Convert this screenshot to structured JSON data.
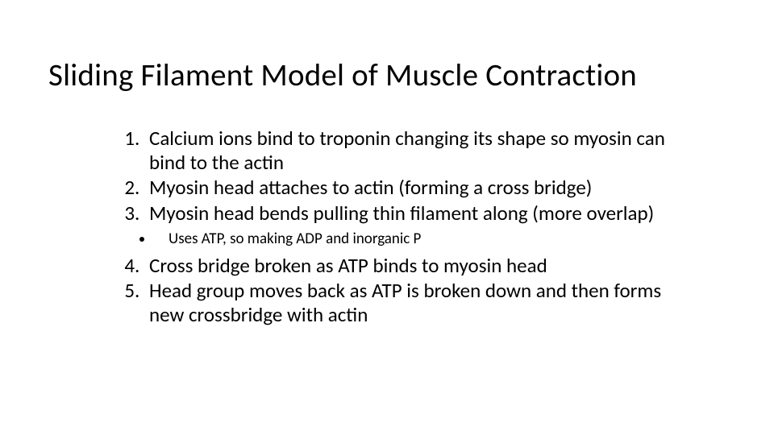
{
  "slide": {
    "background_color": "#ffffff",
    "text_color": "#000000",
    "title": "Sliding Filament Model of Muscle Contraction",
    "title_fontsize": 39,
    "body_fontsize": 25,
    "sub_fontsize": 19,
    "items": [
      {
        "n": 1,
        "text": "Calcium ions bind to troponin changing its shape so myosin can bind to the actin"
      },
      {
        "n": 2,
        "text": "Myosin head attaches to actin (forming a cross bridge)"
      },
      {
        "n": 3,
        "text": "Myosin head bends pulling thin filament along (more overlap)"
      }
    ],
    "sub_items": [
      {
        "text": "Uses ATP, so making ADP and inorganic P"
      }
    ],
    "items_after": [
      {
        "n": 4,
        "text": "Cross bridge broken as ATP binds to myosin head"
      },
      {
        "n": 5,
        "text": "Head group moves back as ATP is broken down and then forms new crossbridge with actin"
      }
    ]
  }
}
